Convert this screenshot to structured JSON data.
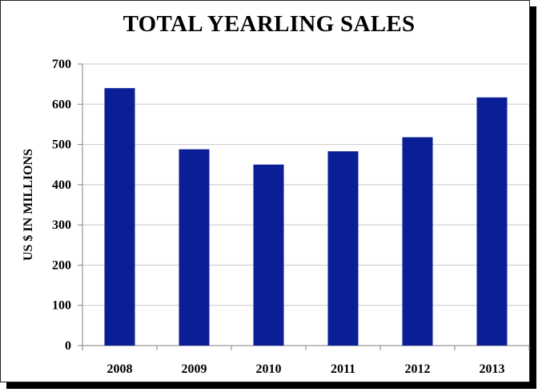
{
  "chart_data": {
    "type": "bar",
    "title": "TOTAL YEARLING SALES",
    "xlabel": "",
    "ylabel": "US $ IN MILLIONS",
    "categories": [
      "2008",
      "2009",
      "2010",
      "2011",
      "2012",
      "2013"
    ],
    "values": [
      640,
      488,
      450,
      483,
      518,
      617
    ],
    "ylim": [
      0,
      700
    ],
    "yticks": [
      0,
      100,
      200,
      300,
      400,
      500,
      600,
      700
    ],
    "grid": true,
    "colors": {
      "bar": "#0a1e96",
      "grid": "#c8c8c8",
      "axis": "#808080"
    }
  }
}
